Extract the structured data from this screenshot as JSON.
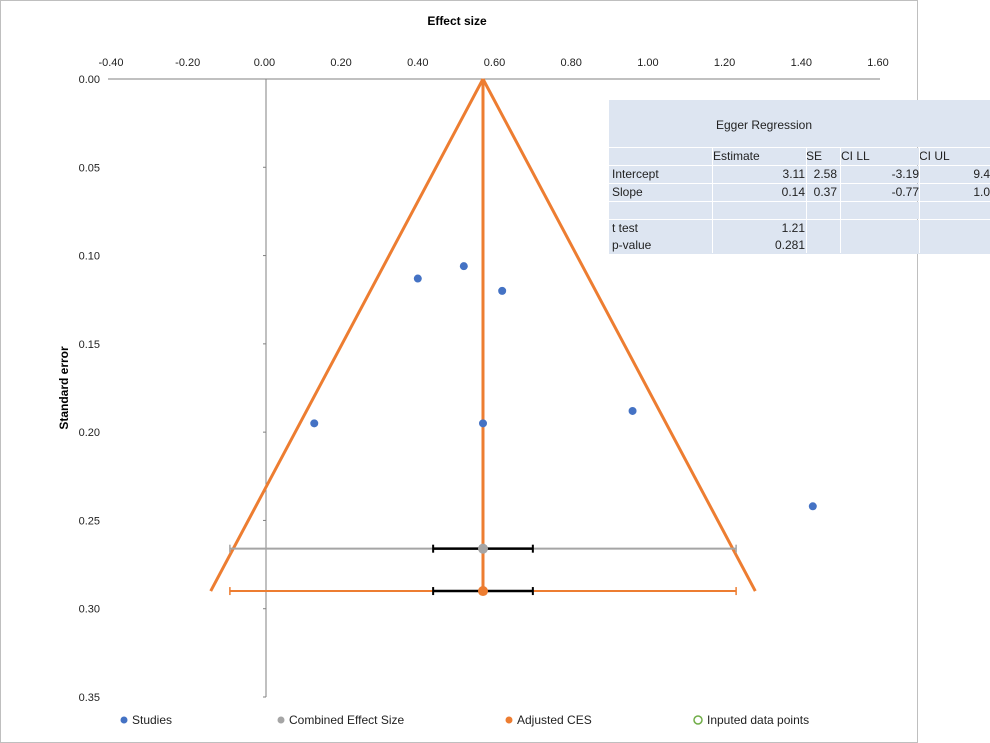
{
  "chart_data": {
    "type": "scatter",
    "title": "",
    "xlabel": "Effect size",
    "ylabel": "Standard error",
    "xlim": [
      -0.4,
      1.6
    ],
    "ylim": [
      0.35,
      0.0
    ],
    "y_inverted": true,
    "x_ticks": [
      "-0.40",
      "-0.20",
      "0.00",
      "0.20",
      "0.40",
      "0.60",
      "0.80",
      "1.00",
      "1.20",
      "1.40",
      "1.60"
    ],
    "y_ticks": [
      "0.00",
      "0.05",
      "0.10",
      "0.15",
      "0.20",
      "0.25",
      "0.30",
      "0.35"
    ],
    "studies": [
      {
        "x": 0.4,
        "y": 0.113
      },
      {
        "x": 0.52,
        "y": 0.106
      },
      {
        "x": 0.62,
        "y": 0.12
      },
      {
        "x": 0.13,
        "y": 0.195
      },
      {
        "x": 0.57,
        "y": 0.195
      },
      {
        "x": 0.96,
        "y": 0.188
      },
      {
        "x": 1.43,
        "y": 0.242
      }
    ],
    "combined_effect_size": {
      "x": 0.57,
      "y": 0.266,
      "ci": [
        0.44,
        0.7
      ],
      "pi": [
        -0.09,
        1.23
      ]
    },
    "adjusted_ces": {
      "x": 0.57,
      "y": 0.29,
      "ci": [
        0.44,
        0.7
      ],
      "pi": [
        -0.09,
        1.23
      ]
    },
    "funnel": {
      "apex": [
        0.57,
        0.0
      ],
      "left_base": [
        -0.14,
        0.29
      ],
      "right_base": [
        1.28,
        0.29
      ]
    },
    "legend": [
      "Studies",
      "Combined Effect Size",
      "Adjusted CES",
      "Inputed data points"
    ],
    "legend_position": "bottom",
    "colors": {
      "studies": "#4472c4",
      "combined": "#a5a5a5",
      "adjusted": "#ed7d31",
      "imputed": "#70ad47",
      "ci": "#000000",
      "axis": "#808080"
    }
  },
  "egger": {
    "title": "Egger Regression",
    "headers": [
      "Estimate",
      "SE",
      "CI LL",
      "CI UL"
    ],
    "rows": [
      {
        "label": "Intercept",
        "estimate": "3.11",
        "se": "2.58",
        "ci_ll": "-3.19",
        "ci_ul": "9.4"
      },
      {
        "label": "Slope",
        "estimate": "0.14",
        "se": "0.37",
        "ci_ll": "-0.77",
        "ci_ul": "1.0"
      }
    ],
    "t_test_label": "t test",
    "t_test": "1.21",
    "p_value_label": "p-value",
    "p_value": "0.281"
  }
}
